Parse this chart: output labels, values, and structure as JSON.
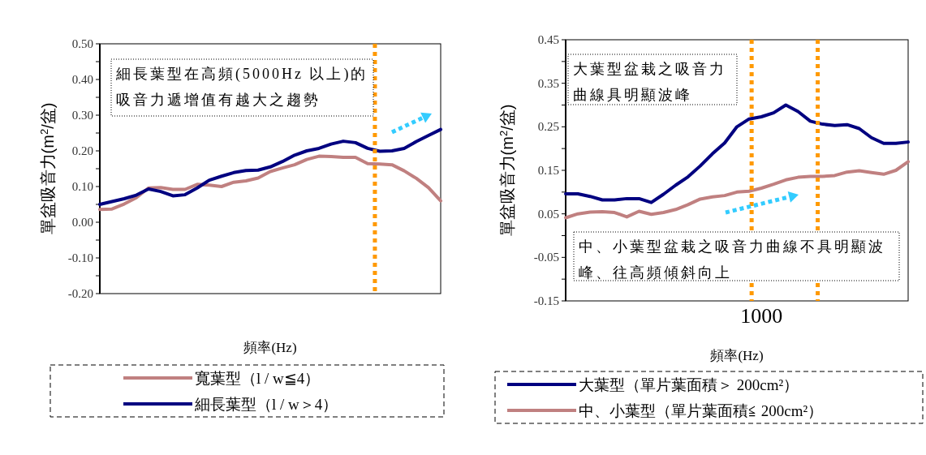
{
  "chart_data": [
    {
      "type": "line",
      "ylabel": "單盆吸音力(m$^{2}$/盆)",
      "xlabel": "頻率(Hz)",
      "categories": [
        null,
        null,
        null,
        null,
        null,
        null,
        null,
        null,
        null,
        null,
        null,
        null,
        null,
        null,
        null,
        null,
        null,
        null,
        null,
        null,
        null,
        null,
        null,
        null,
        null,
        null,
        null,
        null,
        null
      ],
      "series": [
        {
          "name": "寬葉型（l / w≦4）",
          "color": "#c08080",
          "values": [
            0.036,
            0.037,
            0.051,
            0.069,
            0.096,
            0.097,
            0.092,
            0.092,
            0.106,
            0.104,
            0.1,
            0.112,
            0.116,
            0.124,
            0.142,
            0.152,
            0.161,
            0.176,
            0.185,
            0.184,
            0.182,
            0.182,
            0.164,
            0.163,
            0.161,
            0.144,
            0.123,
            0.097,
            0.06
          ]
        },
        {
          "name": "細長葉型（l / w＞4）",
          "color": "#000080",
          "values": [
            0.05,
            0.058,
            0.066,
            0.076,
            0.093,
            0.086,
            0.074,
            0.077,
            0.096,
            0.118,
            0.129,
            0.139,
            0.145,
            0.146,
            0.155,
            0.17,
            0.188,
            0.2,
            0.207,
            0.219,
            0.227,
            0.223,
            0.207,
            0.199,
            0.2,
            0.207,
            0.226,
            0.243,
            0.26
          ]
        }
      ],
      "ylim": [
        -0.2,
        0.5
      ],
      "yticks": [
        {
          "value": -0.2,
          "label": "-0.20"
        },
        {
          "value": -0.15,
          "label": null
        },
        {
          "value": -0.1,
          "label": "-0.10"
        },
        {
          "value": -0.05,
          "label": null
        },
        {
          "value": 0,
          "label": "0.00"
        },
        {
          "value": 0.05,
          "label": null
        },
        {
          "value": 0.1,
          "label": "0.10"
        },
        {
          "value": 0.15,
          "label": null
        },
        {
          "value": 0.2,
          "label": "0.20"
        },
        {
          "value": 0.25,
          "label": null
        },
        {
          "value": 0.3,
          "label": "0.30"
        },
        {
          "value": 0.35,
          "label": null
        },
        {
          "value": 0.4,
          "label": "0.40"
        },
        {
          "value": 0.45,
          "label": null
        },
        {
          "value": 0.5,
          "label": "0.50"
        }
      ],
      "annotations": [
        "細長葉型在高頻(5000Hz 以上)的吸音力遞增值有越大之趨勢"
      ],
      "grid": false,
      "legend": "bottom",
      "marker": "none",
      "line_style": "solid"
    },
    {
      "type": "line",
      "ylabel": "單盆吸音力(m$^{2}$/盆)",
      "xlabel": "頻率(Hz)",
      "categories": [
        null,
        null,
        null,
        null,
        null,
        null,
        null,
        null,
        null,
        null,
        null,
        null,
        null,
        null,
        null,
        null,
        "1000",
        null,
        null,
        null,
        null,
        null,
        null,
        null,
        null,
        null,
        null,
        null,
        null
      ],
      "series": [
        {
          "name": "大葉型（單片葉面積＞ 200cm²）",
          "color": "#000080",
          "values": [
            0.096,
            0.096,
            0.09,
            0.082,
            0.082,
            0.085,
            0.085,
            0.076,
            0.095,
            0.116,
            0.135,
            0.16,
            0.188,
            0.213,
            0.25,
            0.268,
            0.273,
            0.282,
            0.3,
            0.285,
            0.263,
            0.256,
            0.253,
            0.255,
            0.246,
            0.225,
            0.212,
            0.212,
            0.215
          ]
        },
        {
          "name": "中、小葉型（單片葉面積≦ 200cm²）",
          "color": "#c08080",
          "values": [
            0.041,
            0.05,
            0.054,
            0.055,
            0.053,
            0.043,
            0.056,
            0.049,
            0.053,
            0.06,
            0.071,
            0.084,
            0.089,
            0.092,
            0.1,
            0.102,
            0.109,
            0.118,
            0.128,
            0.134,
            0.136,
            0.136,
            0.138,
            0.146,
            0.149,
            0.145,
            0.141,
            0.15,
            0.17
          ]
        }
      ],
      "ylim": [
        -0.15,
        0.45
      ],
      "yticks": [
        {
          "value": -0.15,
          "label": "-0.15"
        },
        {
          "value": -0.1,
          "label": null
        },
        {
          "value": -0.05,
          "label": "-0.05"
        },
        {
          "value": 0,
          "label": null
        },
        {
          "value": 0.05,
          "label": "0.05"
        },
        {
          "value": 0.1,
          "label": null
        },
        {
          "value": 0.15,
          "label": "0.15"
        },
        {
          "value": 0.2,
          "label": null
        },
        {
          "value": 0.25,
          "label": "0.25"
        },
        {
          "value": 0.3,
          "label": null
        },
        {
          "value": 0.35,
          "label": "0.35"
        },
        {
          "value": 0.4,
          "label": null
        },
        {
          "value": 0.45,
          "label": "0.45"
        }
      ],
      "annotations": [
        "大葉型盆栽之吸音力曲線具明顯波峰",
        "中、小葉型盆栽之吸音力曲線不具明顯波峰、往高頻傾斜向上"
      ],
      "grid": false,
      "legend": "bottom",
      "marker": "none",
      "line_style": "solid"
    }
  ]
}
